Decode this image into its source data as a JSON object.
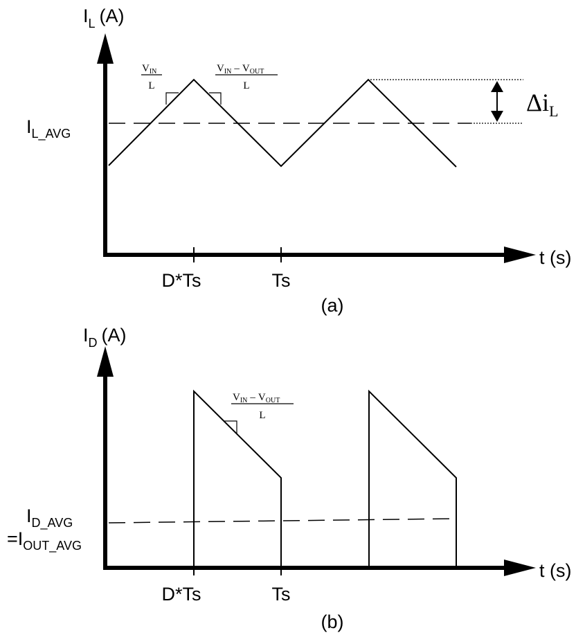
{
  "panel_a": {
    "y_axis_main": "I",
    "y_axis_sub": "L",
    "y_axis_unit": "(A)",
    "x_axis_label": "t (s)",
    "avg_main": "I",
    "avg_sub": "L_AVG",
    "tick_1": "D*Ts",
    "tick_2": "Ts",
    "rise_slope_num_main": "V",
    "rise_slope_num_sub": "IN",
    "rise_slope_den": "L",
    "fall_slope_num_a": "V",
    "fall_slope_num_a_sub": "IN",
    "fall_slope_minus": "–",
    "fall_slope_num_b": "V",
    "fall_slope_num_b_sub": "OUT",
    "fall_slope_den": "L",
    "ripple_symbol": "Δi",
    "ripple_sub": "L",
    "caption": "(a)"
  },
  "panel_b": {
    "y_axis_main": "I",
    "y_axis_sub": "D",
    "y_axis_unit": "(A)",
    "x_axis_label": "t (s)",
    "avg_line1_main": "I",
    "avg_line1_sub": "D_AVG",
    "avg_line2_prefix": "=I",
    "avg_line2_sub": "OUT_AVG",
    "tick_1": "D*Ts",
    "tick_2": "Ts",
    "fall_slope_num_a": "V",
    "fall_slope_num_a_sub": "IN",
    "fall_slope_minus": "–",
    "fall_slope_num_b": "V",
    "fall_slope_num_b_sub": "OUT",
    "fall_slope_den": "L",
    "caption": "(b)"
  }
}
